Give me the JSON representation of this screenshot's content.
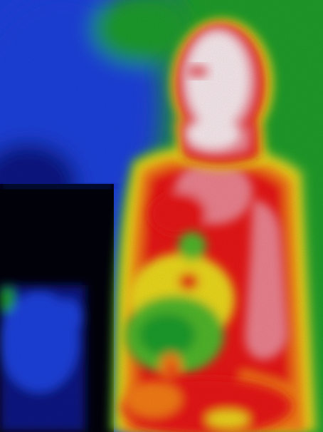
{
  "image": {
    "kind": "thermal-infrared-photo",
    "subject": "person",
    "palette": {
      "cold_black": "#02020a",
      "cold_deep_blue": "#0a1480",
      "cool_blue": "#1e3fd8",
      "cool_green": "#1f9a2a",
      "warm_green": "#4fb42a",
      "mid_yellow": "#e8d51a",
      "warm_orange": "#f07a12",
      "hot_red": "#e41818",
      "hotter_pink": "#e8808c",
      "hottest_white": "#f4e6ea"
    }
  }
}
